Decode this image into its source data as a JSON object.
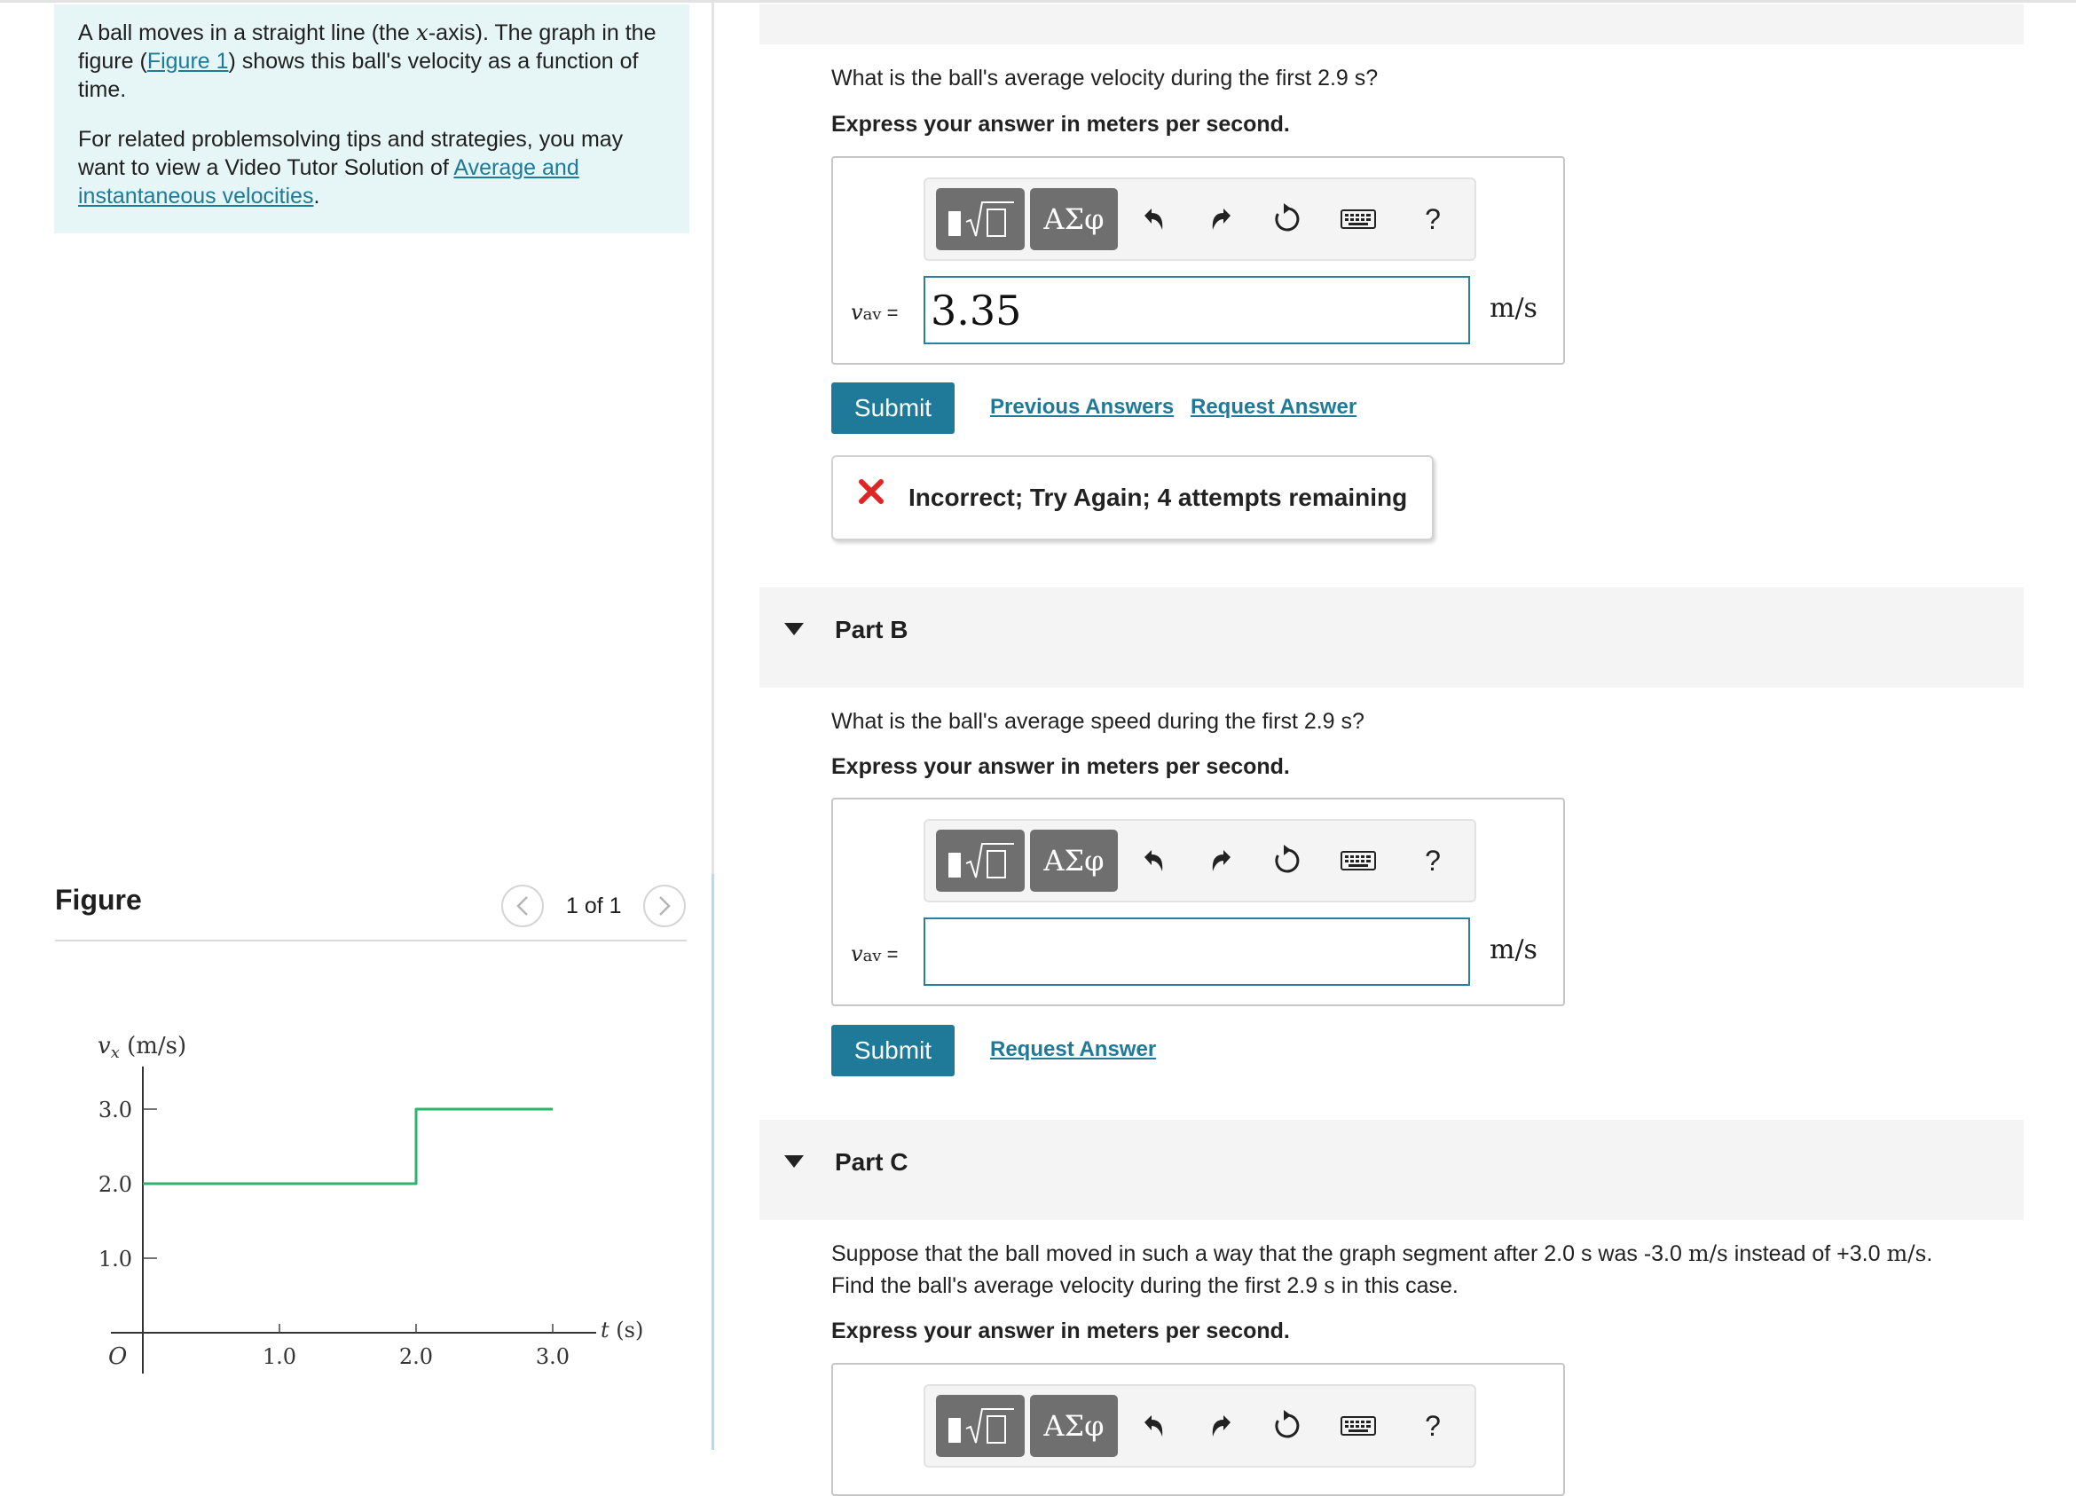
{
  "intro": {
    "line1_pre": "A ball moves in a straight line (the ",
    "line1_var": "x",
    "line1_mid": "-axis). The graph in the figure (",
    "figure_link": "Figure 1",
    "line1_post": ") shows this ball's velocity as a function of time.",
    "line2_pre": "For related problemsolving tips and strategies, you may want to view a Video Tutor Solution of ",
    "video_link": "Average and instantaneous velocities",
    "line2_post": "."
  },
  "figure": {
    "title": "Figure",
    "pager_text": "1 of 1",
    "prev_glyph": "<",
    "next_glyph": ">"
  },
  "chart_data": {
    "type": "line",
    "ylabel_var": "v",
    "ylabel_sub": "x",
    "ylabel_unit": " (m/s)",
    "xlabel_var": "t",
    "xlabel_unit": " (s)",
    "origin_label": "O",
    "x_ticks": [
      1.0,
      2.0,
      3.0
    ],
    "x_tick_labels": [
      "1.0",
      "2.0",
      "3.0"
    ],
    "y_ticks": [
      1.0,
      2.0,
      3.0
    ],
    "y_tick_labels": [
      "1.0",
      "2.0",
      "3.0"
    ],
    "xlim": [
      0,
      3.0
    ],
    "ylim": [
      0,
      3.0
    ],
    "series": [
      {
        "x": [
          0,
          2.0,
          2.0,
          3.0
        ],
        "y": [
          2.0,
          2.0,
          3.0,
          3.0
        ],
        "color": "#2fb36a"
      }
    ]
  },
  "toolbar": {
    "sigma_label": "ΑΣφ",
    "help_label": "?"
  },
  "partA": {
    "question": "What is the ball's average velocity during the first 2.9 s?",
    "instruction": "Express your answer in meters per second.",
    "var": "v",
    "var_sub": "av",
    "equals": " =",
    "value": "3.35",
    "unit": "m/s",
    "submit": "Submit",
    "previous_answers": "Previous Answers",
    "request_answer": "Request Answer",
    "feedback": "Incorrect; Try Again; 4 attempts remaining"
  },
  "partB": {
    "label": "Part B",
    "question": "What is the ball's average speed during the first 2.9 s?",
    "instruction": "Express your answer in meters per second.",
    "var": "v",
    "var_sub": "av",
    "equals": " =",
    "value": "",
    "unit": "m/s",
    "submit": "Submit",
    "request_answer": "Request Answer"
  },
  "partC": {
    "label": "Part C",
    "q_line1_pre": "Suppose that the ball moved in such a way that the graph segment after 2.0 s was -3.0 ",
    "q_unit1": "m/s",
    "q_line1_mid": " instead of +3.0 ",
    "q_unit2": "m/s",
    "q_line1_post": ".",
    "q_line2_pre": "Find the ball's average velocity during the first 2.9 ",
    "q_unit3": "s",
    "q_line2_post": " in this case.",
    "instruction": "Express your answer in meters per second."
  },
  "colors": {
    "accent": "#1f7a9a",
    "intro_bg": "#e6f5f5",
    "graph_line": "#2fb36a",
    "error": "#e02424"
  }
}
